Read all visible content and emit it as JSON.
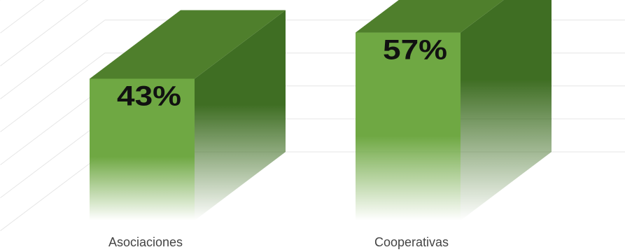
{
  "chart_data": {
    "type": "bar",
    "style": "3d-column",
    "categories": [
      "Asociaciones",
      "Cooperativas"
    ],
    "values": [
      43,
      57
    ],
    "data_labels": [
      "43%",
      "57%"
    ],
    "value_unit": "%",
    "ylim": [
      0,
      70
    ],
    "grid": true,
    "legend": "none",
    "colors": {
      "front": "#6fa843",
      "top": "#4f7f2c",
      "side": "#3f6e23",
      "grid": "#e6e6e6",
      "label": "#111111",
      "category_text": "#444444"
    }
  }
}
